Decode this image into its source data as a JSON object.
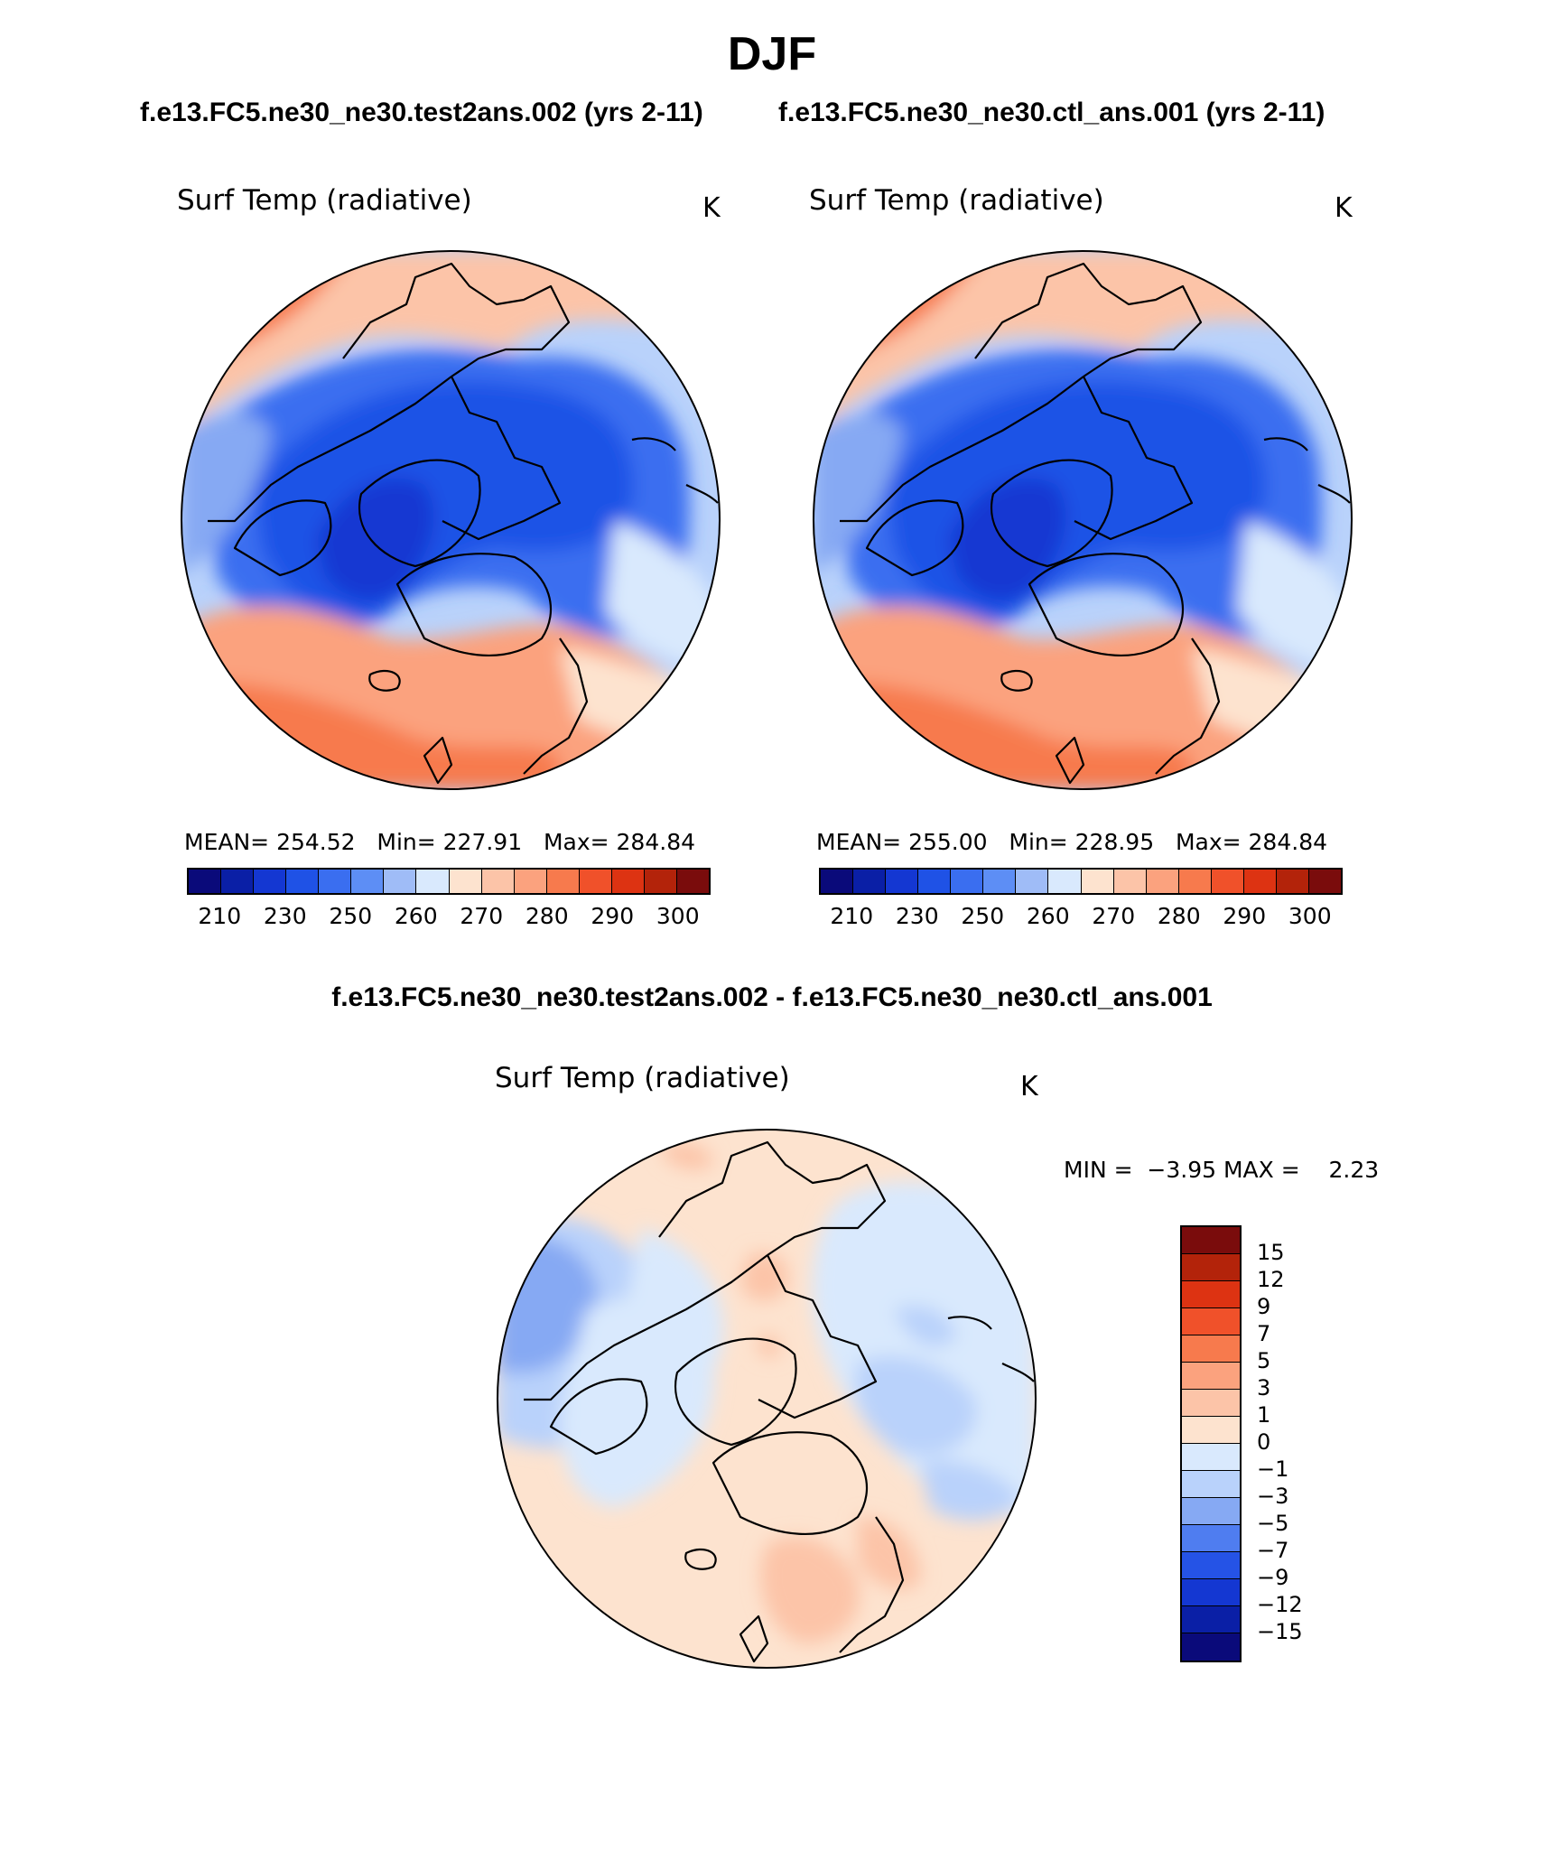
{
  "figure": {
    "title": "DJF",
    "subtitle_left": "f.e13.FC5.ne30_ne30.test2ans.002 (yrs 2-11)",
    "subtitle_right": "f.e13.FC5.ne30_ne30.ctl_ans.001 (yrs 2-11)",
    "diff_title": "f.e13.FC5.ne30_ne30.test2ans.002 - f.e13.FC5.ne30_ne30.ctl_ans.001"
  },
  "panels": [
    {
      "title": "Surf Temp (radiative)",
      "units": "K",
      "stats": "MEAN= 254.52   Min= 227.91   Max= 284.84"
    },
    {
      "title": "Surf Temp (radiative)",
      "units": "K",
      "stats": "MEAN= 255.00   Min= 228.95   Max= 284.84"
    },
    {
      "title": "Surf Temp (radiative)",
      "units": "K",
      "stats": "MIN =  −3.95 MAX =    2.23"
    }
  ],
  "colorbar_abs": {
    "colors": [
      "#0a0a7a",
      "#0a1fa6",
      "#1437d2",
      "#1f52e6",
      "#3a6ef0",
      "#5d8ef5",
      "#9fbcf7",
      "#d9e9fd",
      "#fde3cf",
      "#fcc4a8",
      "#fba27e",
      "#f77a4d",
      "#f0512a",
      "#dd3312",
      "#b3230a",
      "#7a0c0c"
    ],
    "ticks": [
      "210",
      "230",
      "250",
      "260",
      "270",
      "280",
      "290",
      "300"
    ]
  },
  "colorbar_diff": {
    "colors": [
      "#7a0c0c",
      "#b3230a",
      "#dd3312",
      "#f0512a",
      "#f77a4d",
      "#fba27e",
      "#fcc4a8",
      "#fde3cf",
      "#d9e9fd",
      "#b9d2fb",
      "#86a9f3",
      "#4f7df0",
      "#2553e6",
      "#1437d2",
      "#0a1fa6",
      "#0a0a7a"
    ],
    "ticks": [
      "15",
      "12",
      "9",
      "7",
      "5",
      "3",
      "1",
      "0",
      "−1",
      "−3",
      "−5",
      "−7",
      "−9",
      "−12",
      "−15"
    ]
  }
}
